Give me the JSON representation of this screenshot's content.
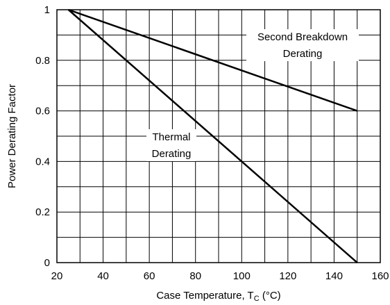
{
  "chart_data": {
    "type": "line",
    "title": "",
    "xlabel": "Case Temperature, T",
    "xlabel_sub": "C",
    "xlabel_unit": " (°C)",
    "ylabel": "Power Derating Factor",
    "xlim": [
      20,
      160
    ],
    "ylim": [
      0,
      1
    ],
    "x_ticks": [
      20,
      40,
      60,
      80,
      100,
      120,
      140,
      160
    ],
    "x_tick_labels": [
      "20",
      "40",
      "60",
      "80",
      "100",
      "120",
      "140",
      "160"
    ],
    "y_ticks": [
      0,
      0.2,
      0.4,
      0.6,
      0.8,
      1
    ],
    "y_tick_labels": [
      "0",
      "0.2",
      "0.4",
      "0.6",
      "0.8",
      "1"
    ],
    "x_grid_step": 10,
    "y_grid_step": 0.1,
    "grid": true,
    "series": [
      {
        "name": "Second Breakdown Derating",
        "x": [
          25,
          150
        ],
        "y": [
          1.0,
          0.6
        ]
      },
      {
        "name": "Thermal Derating",
        "x": [
          25,
          150
        ],
        "y": [
          1.0,
          0.0
        ]
      }
    ],
    "annotations": [
      {
        "lines": [
          "Second Breakdown",
          "Derating"
        ],
        "series": 0
      },
      {
        "lines": [
          "Thermal",
          "Derating"
        ],
        "series": 1
      }
    ]
  }
}
